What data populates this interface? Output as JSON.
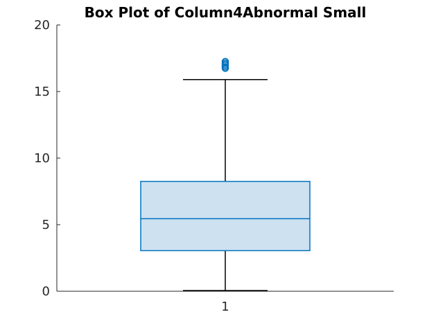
{
  "chart_data": {
    "type": "box",
    "title": "Box Plot of Column4Abnormal Small",
    "xlabel": "",
    "ylabel": "",
    "categories": [
      "1"
    ],
    "ylim": [
      0,
      20
    ],
    "yticks": [
      0,
      5,
      10,
      15,
      20
    ],
    "grid": false,
    "series": [
      {
        "category": "1",
        "whisker_low": 0.05,
        "q1": 3.05,
        "median": 5.45,
        "q3": 8.25,
        "whisker_high": 15.9,
        "outliers": [
          16.75,
          16.85,
          16.95,
          17.05,
          17.15,
          17.25
        ]
      }
    ],
    "colors": {
      "box_fill": "#cde1f1",
      "box_edge": "#0072bd",
      "whisker": "#000000",
      "outlier": "#0072bd",
      "axis": "#262626"
    }
  }
}
